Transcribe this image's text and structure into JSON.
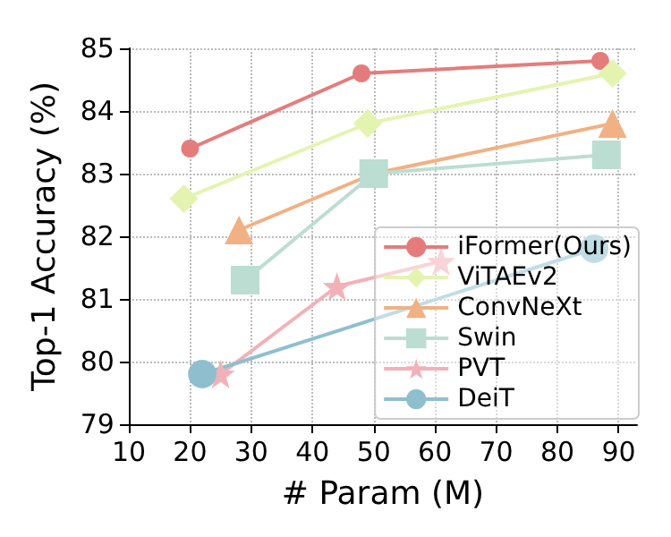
{
  "chart_data": {
    "type": "line",
    "xlabel": "# Param (M)",
    "ylabel": "Top-1 Accuracy (%)",
    "xlim": [
      10,
      93
    ],
    "ylim": [
      79,
      85
    ],
    "xticks": [
      10,
      20,
      30,
      40,
      50,
      60,
      70,
      80,
      90
    ],
    "yticks": [
      79,
      80,
      81,
      82,
      83,
      84,
      85
    ],
    "grid": true,
    "legend": "bottom right",
    "series": [
      {
        "name": "iFormer(Ours)",
        "color": "#e57c7c",
        "marker": "circle",
        "x": [
          20,
          48,
          87
        ],
        "values": [
          83.4,
          84.6,
          84.8
        ]
      },
      {
        "name": "ViTAEv2",
        "color": "#e4f4b0",
        "marker": "diamond",
        "x": [
          19,
          49,
          89
        ],
        "values": [
          82.6,
          83.8,
          84.6
        ]
      },
      {
        "name": "ConvNeXt",
        "color": "#f0b184",
        "marker": "triangle",
        "x": [
          28,
          50,
          89
        ],
        "values": [
          82.1,
          83.0,
          83.8
        ]
      },
      {
        "name": "Swin",
        "color": "#bcddd2",
        "marker": "square",
        "x": [
          29,
          50,
          88
        ],
        "values": [
          81.3,
          83.0,
          83.3
        ]
      },
      {
        "name": "PVT",
        "color": "#f2b1b8",
        "marker": "star",
        "x": [
          25,
          44,
          61
        ],
        "values": [
          79.8,
          81.2,
          81.6
        ]
      },
      {
        "name": "DeiT",
        "color": "#8fbfcf",
        "marker": "circle",
        "x": [
          22,
          86
        ],
        "values": [
          79.8,
          81.8
        ]
      }
    ]
  }
}
